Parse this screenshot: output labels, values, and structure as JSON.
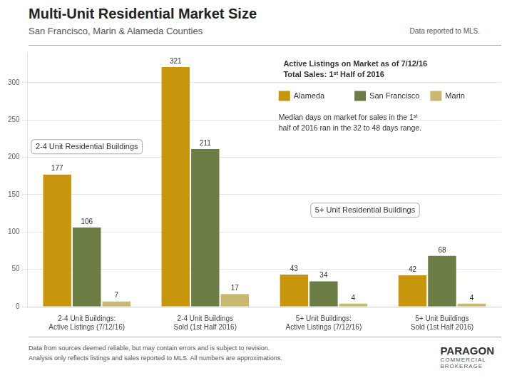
{
  "chart_data": {
    "type": "bar",
    "title": "Multi-Unit Residential Market Size",
    "subtitle": "San Francisco, Marin & Alameda Counties",
    "data_note": "Data reported to MLS.",
    "legend_title": "Active Listings on Market as of 7/12/16\nTotal Sales: 1ˢᵗ Half of 2016",
    "categories": [
      "2-4 Unit Buildings:\nActive Listings (7/12/16)",
      "2-4 Unit Buildings\nSold (1st Half 2016)",
      "5+ Unit Buildings:\nActive Listings (7/12/16)",
      "5+ Unit Buildings\nSold (1st Half 2016)"
    ],
    "series": [
      {
        "name": "Alameda",
        "color": "#C8960C",
        "values": [
          177,
          321,
          43,
          42
        ]
      },
      {
        "name": "San Francisco",
        "color": "#6B7C45",
        "values": [
          106,
          211,
          34,
          68
        ]
      },
      {
        "name": "Marin",
        "color": "#C8B870",
        "values": [
          7,
          17,
          4,
          4
        ]
      }
    ],
    "ylim": [
      0,
      340
    ],
    "yticks": [
      0,
      50,
      100,
      150,
      200,
      250,
      300
    ],
    "grid": true,
    "legend": "upper right",
    "data_labels": true,
    "annotations": [
      "2-4 Unit Residential Buildings",
      "5+ Unit Residential Buildings",
      "Median days on market for sales in the 1ˢᵗ\nhalf of 2016 ran in the 32 to 48 days range."
    ],
    "footer": "Data from sources deemed reliable, but may contain errors and is subject to revision.\nAnalysis only reflects listings and sales reported to MLS. All numbers are approximations.",
    "logo": [
      "PARAGON",
      "COMMERCIAL",
      "BROKERAGE"
    ]
  }
}
